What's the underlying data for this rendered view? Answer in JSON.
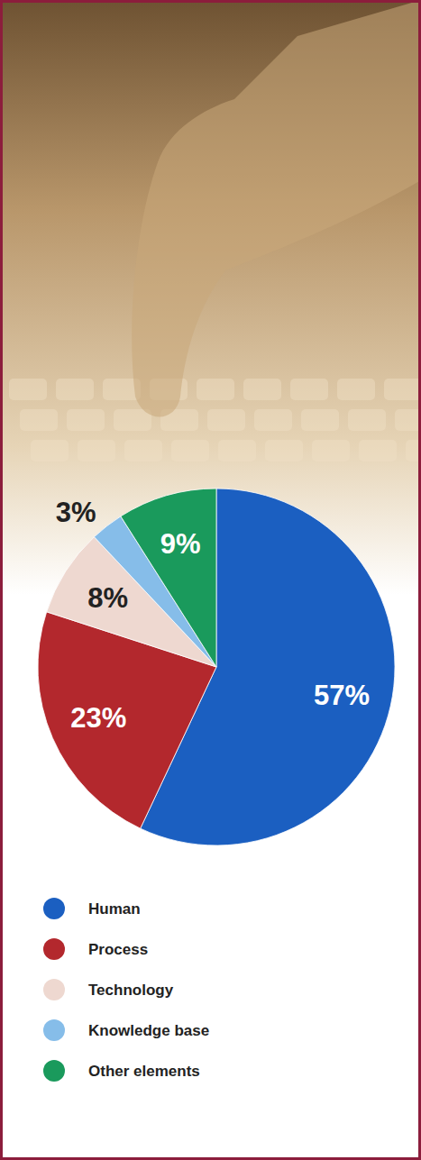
{
  "chart_data": {
    "type": "pie",
    "categories": [
      "Human",
      "Process",
      "Technology",
      "Knowledge base",
      "Other elements"
    ],
    "values": [
      57,
      23,
      8,
      3,
      9
    ],
    "value_labels": [
      "57%",
      "23%",
      "8%",
      "3%",
      "9%"
    ],
    "colors": [
      "#1b5fc1",
      "#b3282d",
      "#eed8d0",
      "#86bde9",
      "#1a9a5c"
    ],
    "data_labels": true,
    "legend": "bottom"
  }
}
